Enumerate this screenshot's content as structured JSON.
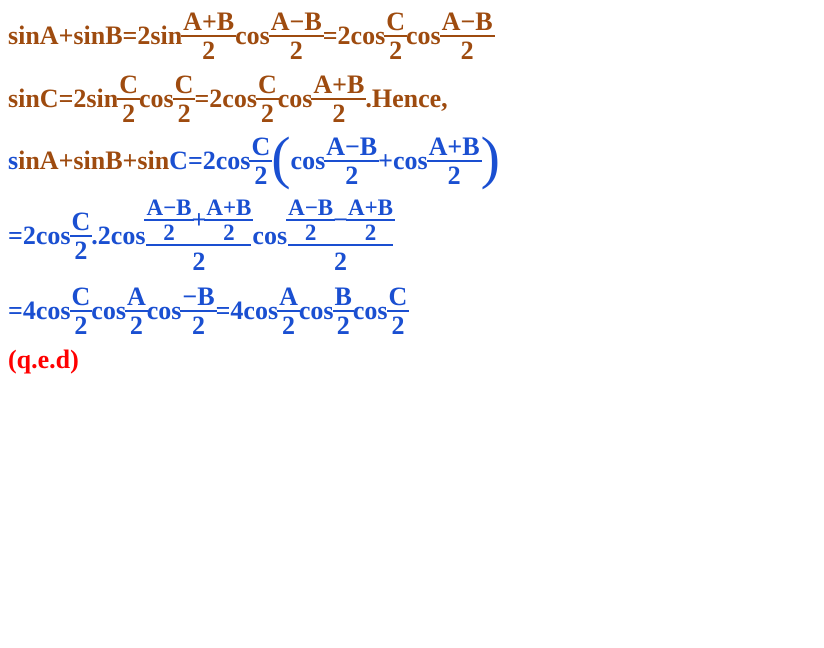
{
  "colors": {
    "brown": "#9e4b0f",
    "blue": "#1a4fd1",
    "red": "#ff0000",
    "background": "#ffffff"
  },
  "typography": {
    "base_fontsize_pt": 20,
    "font_family": "Times New Roman, serif",
    "weight": "bold"
  },
  "line1": {
    "p1": "sinA+sinB=",
    "two1": "2",
    "sin": "sin",
    "f1n": "A+B",
    "f1d": "2",
    "cos1": "cos",
    "f2n": "A−B",
    "f2d": "2",
    "eq": "=",
    "two2": "2",
    "cos2": "cos",
    "f3n": "C",
    "f3d": "2",
    "cos3": "cos",
    "f4n": "A−B",
    "f4d": "2"
  },
  "line2": {
    "p1": "sinC=",
    "two1": "2",
    "sin": "sin",
    "f1n": "C",
    "f1d": "2",
    "cos1": "cos",
    "f2n": "C",
    "f2d": "2",
    "eq": "=",
    "two2": "2",
    "cos2": "cos",
    "f3n": "C",
    "f3d": "2",
    "cos3": "cos",
    "f4n": "A+B",
    "f4d": "2",
    "dot_hence": ".Hence,"
  },
  "line3": {
    "s": "s",
    "p1": "inA+sinB+sin",
    "p2": "C=",
    "two": "2",
    "cos1": "cos",
    "f1n": "C",
    "f1d": "2",
    "lp": "(",
    "cos2": "cos",
    "f2n": "A−B",
    "f2d": "2",
    "plus": "+",
    "cos3": "cos",
    "f3n": "A+B",
    "f3d": "2",
    "rp": ")"
  },
  "line4": {
    "eq": "=",
    "two": "2",
    "cos1": "cos",
    "f1n": "C",
    "f1d": "2",
    "dot2": ".2",
    "cos2": "cos",
    "cf1an": "A−B",
    "cf1ad": "2",
    "cf1plus": "+",
    "cf1bn": "A+B",
    "cf1bd": "2",
    "cf1den": "2",
    "cos3": "cos",
    "cf2an": "A−B",
    "cf2ad": "2",
    "cf2minus": "−",
    "cf2bn": "A+B",
    "cf2bd": "2",
    "cf2den": "2"
  },
  "line5": {
    "eq1": "=",
    "four1": "4",
    "cos1": "cos",
    "f1n": "C",
    "f1d": "2",
    "cos2": "cos",
    "f2n": "A",
    "f2d": "2",
    "cos3": "cos",
    "f3n": "−B",
    "f3d": "2",
    "eq2": "=",
    "four2": "4",
    "cos4": "cos",
    "f4n": "A",
    "f4d": "2",
    "cos5": "cos",
    "f5n": "B",
    "f5d": "2",
    "cos6": "cos",
    "f6n": "C",
    "f6d": "2"
  },
  "line6": {
    "text": "(q.e.d)"
  }
}
